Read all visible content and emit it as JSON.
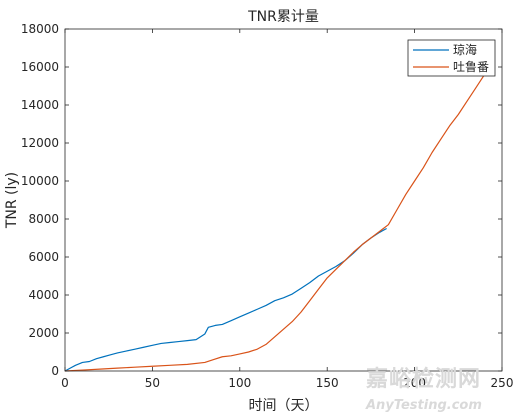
{
  "chart_data": {
    "type": "line",
    "title": "TNR累计量",
    "xlabel": "时间（天）",
    "ylabel": "TNR (ly)",
    "xlim": [
      0,
      250
    ],
    "ylim": [
      0,
      18000
    ],
    "xticks": [
      0,
      50,
      100,
      150,
      200,
      250
    ],
    "yticks": [
      0,
      2000,
      4000,
      6000,
      8000,
      10000,
      12000,
      14000,
      16000,
      18000
    ],
    "grid": false,
    "legend_position": "top-right",
    "series": [
      {
        "name": "琼海",
        "color": "#0072BD",
        "points": [
          [
            0,
            0
          ],
          [
            3,
            150
          ],
          [
            6,
            300
          ],
          [
            10,
            450
          ],
          [
            14,
            500
          ],
          [
            18,
            650
          ],
          [
            22,
            750
          ],
          [
            26,
            850
          ],
          [
            30,
            950
          ],
          [
            35,
            1050
          ],
          [
            40,
            1150
          ],
          [
            45,
            1250
          ],
          [
            50,
            1350
          ],
          [
            55,
            1450
          ],
          [
            60,
            1500
          ],
          [
            65,
            1550
          ],
          [
            70,
            1600
          ],
          [
            75,
            1650
          ],
          [
            80,
            1950
          ],
          [
            82,
            2300
          ],
          [
            86,
            2400
          ],
          [
            90,
            2450
          ],
          [
            95,
            2650
          ],
          [
            100,
            2850
          ],
          [
            105,
            3050
          ],
          [
            110,
            3250
          ],
          [
            115,
            3450
          ],
          [
            120,
            3700
          ],
          [
            125,
            3850
          ],
          [
            130,
            4050
          ],
          [
            135,
            4350
          ],
          [
            140,
            4650
          ],
          [
            145,
            5000
          ],
          [
            150,
            5250
          ],
          [
            155,
            5500
          ],
          [
            160,
            5800
          ],
          [
            165,
            6200
          ],
          [
            170,
            6650
          ],
          [
            175,
            7000
          ],
          [
            180,
            7300
          ],
          [
            184,
            7500
          ]
        ]
      },
      {
        "name": "吐鲁番",
        "color": "#D95319",
        "points": [
          [
            0,
            0
          ],
          [
            10,
            50
          ],
          [
            20,
            100
          ],
          [
            30,
            150
          ],
          [
            40,
            200
          ],
          [
            50,
            250
          ],
          [
            60,
            300
          ],
          [
            70,
            350
          ],
          [
            80,
            450
          ],
          [
            85,
            600
          ],
          [
            90,
            750
          ],
          [
            95,
            800
          ],
          [
            100,
            900
          ],
          [
            105,
            1000
          ],
          [
            110,
            1150
          ],
          [
            115,
            1400
          ],
          [
            120,
            1800
          ],
          [
            125,
            2200
          ],
          [
            130,
            2600
          ],
          [
            135,
            3100
          ],
          [
            140,
            3700
          ],
          [
            145,
            4300
          ],
          [
            150,
            4900
          ],
          [
            155,
            5350
          ],
          [
            160,
            5800
          ],
          [
            165,
            6250
          ],
          [
            170,
            6650
          ],
          [
            175,
            7000
          ],
          [
            180,
            7350
          ],
          [
            185,
            7700
          ],
          [
            190,
            8500
          ],
          [
            195,
            9300
          ],
          [
            200,
            10000
          ],
          [
            205,
            10700
          ],
          [
            210,
            11500
          ],
          [
            215,
            12200
          ],
          [
            220,
            12900
          ],
          [
            225,
            13500
          ],
          [
            230,
            14200
          ],
          [
            235,
            14900
          ],
          [
            240,
            15600
          ]
        ]
      }
    ]
  },
  "watermark": {
    "cn": "嘉峪检测网",
    "en": "AnyTesting.com"
  }
}
